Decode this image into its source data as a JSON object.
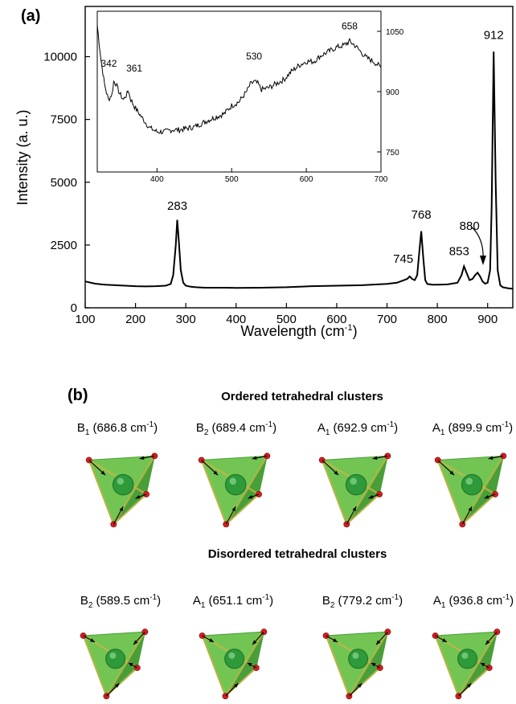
{
  "panel_a": {
    "label": "(a)",
    "ylabel": "Intensity  (a. u.)",
    "xlabel_main": "Wavelength  (cm",
    "xlabel_sup": "-1",
    "xlabel_close": ")"
  },
  "panel_b": {
    "label": "(b)",
    "ordered_title": "Ordered tetrahedral clusters",
    "disordered_title": "Disordered tetrahedral clusters",
    "ordered_modes": [
      {
        "sym": "B",
        "sub": "1",
        "freq": "(686.8 cm",
        "sup": "-1",
        "close": ")"
      },
      {
        "sym": "B",
        "sub": "2",
        "freq": "(689.4 cm",
        "sup": "-1",
        "close": ")"
      },
      {
        "sym": "A",
        "sub": "1",
        "freq": "(692.9 cm",
        "sup": "-1",
        "close": ")"
      },
      {
        "sym": "A",
        "sub": "1",
        "freq": "(899.9 cm",
        "sup": "-1",
        "close": ")"
      }
    ],
    "disordered_modes": [
      {
        "sym": "B",
        "sub": "2",
        "freq": "(589.5 cm",
        "sup": "-1",
        "close": ")"
      },
      {
        "sym": "A",
        "sub": "1",
        "freq": "(651.1 cm",
        "sup": "-1",
        "close": ")"
      },
      {
        "sym": "B",
        "sub": "2",
        "freq": "(779.2 cm",
        "sup": "-1",
        "close": ")"
      },
      {
        "sym": "A",
        "sub": "1",
        "freq": "(936.8 cm",
        "sup": "-1",
        "close": ")"
      }
    ]
  },
  "colors": {
    "line": "#000000",
    "tetra_face_light": "#6cc24a",
    "tetra_face_dark": "#3f9a2f",
    "tetra_edge": "#c9b64a",
    "atom_center": "#2e9a3a",
    "atom_vertex": "#d42020"
  },
  "chart_data": [
    {
      "type": "line",
      "xlim": [
        100,
        950
      ],
      "ylim": [
        0,
        12000
      ],
      "xticks": [
        100,
        200,
        300,
        400,
        500,
        600,
        700,
        800,
        900
      ],
      "yticks": [
        0,
        2500,
        5000,
        7500,
        10000
      ],
      "x": [
        100,
        120,
        140,
        160,
        180,
        200,
        220,
        240,
        260,
        270,
        275,
        280,
        283,
        286,
        290,
        295,
        300,
        310,
        320,
        340,
        360,
        380,
        400,
        450,
        500,
        550,
        600,
        650,
        700,
        720,
        740,
        745,
        750,
        755,
        760,
        764,
        768,
        772,
        776,
        780,
        790,
        800,
        820,
        840,
        848,
        853,
        858,
        864,
        870,
        875,
        880,
        885,
        890,
        895,
        900,
        905,
        908,
        912,
        916,
        920,
        925,
        930,
        940,
        950
      ],
      "y": [
        1050,
        960,
        920,
        900,
        880,
        860,
        850,
        860,
        880,
        950,
        1300,
        2500,
        3500,
        2700,
        1500,
        1000,
        880,
        840,
        820,
        800,
        800,
        800,
        790,
        800,
        820,
        860,
        880,
        900,
        950,
        1000,
        1150,
        1250,
        1150,
        1100,
        1300,
        2200,
        3050,
        2000,
        1100,
        950,
        920,
        920,
        930,
        1000,
        1300,
        1650,
        1400,
        1100,
        1150,
        1300,
        1400,
        1250,
        1050,
        960,
        1000,
        1500,
        4000,
        10200,
        5000,
        1500,
        900,
        820,
        780,
        760
      ],
      "annotations": [
        "283",
        "745",
        "768",
        "853",
        "880",
        "912"
      ]
    },
    {
      "type": "line",
      "inset": true,
      "xlim": [
        320,
        700
      ],
      "ylim": [
        700,
        1100
      ],
      "xticks": [
        400,
        500,
        600,
        700
      ],
      "yticks": [
        750,
        900,
        1050
      ],
      "y_axis_side": "right",
      "x": [
        320,
        325,
        330,
        335,
        340,
        342,
        345,
        350,
        355,
        360,
        361,
        365,
        370,
        380,
        390,
        400,
        410,
        420,
        430,
        450,
        470,
        490,
        500,
        510,
        520,
        525,
        530,
        535,
        540,
        550,
        560,
        570,
        580,
        590,
        600,
        610,
        620,
        630,
        640,
        650,
        658,
        665,
        670,
        680,
        690,
        700
      ],
      "y": [
        1065,
        980,
        915,
        880,
        895,
        925,
        920,
        895,
        880,
        895,
        905,
        880,
        862,
        835,
        810,
        800,
        800,
        805,
        805,
        812,
        830,
        845,
        865,
        875,
        900,
        918,
        925,
        920,
        905,
        910,
        920,
        930,
        950,
        965,
        975,
        975,
        990,
        1000,
        1010,
        1015,
        1025,
        1015,
        1005,
        985,
        975,
        960
      ],
      "annotations": [
        "342",
        "361",
        "530",
        "658"
      ]
    }
  ]
}
